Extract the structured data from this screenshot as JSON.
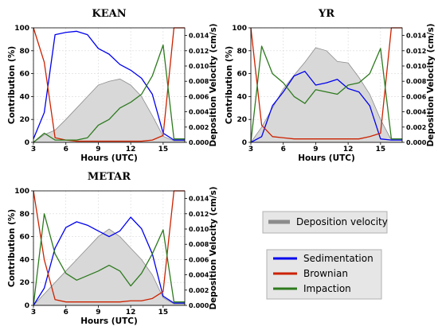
{
  "chart_data": [
    {
      "type": "line",
      "title": "KEAN",
      "xlabel": "Hours (UTC)",
      "ylabel": "Contribution (%)",
      "y2label": "Deposition Velocity (cm/s)",
      "xlim": [
        3,
        17
      ],
      "ylim": [
        0,
        100
      ],
      "y2lim": [
        0,
        0.015
      ],
      "xticks": [
        "3",
        "6",
        "9",
        "12",
        "15"
      ],
      "yticks": [
        "0",
        "20",
        "40",
        "60",
        "80",
        "100"
      ],
      "y2ticks": [
        "0.000",
        "0.002",
        "0.004",
        "0.006",
        "0.008",
        "0.010",
        "0.012",
        "0.014"
      ],
      "x": [
        3,
        4,
        5,
        6,
        7,
        8,
        9,
        10,
        11,
        12,
        13,
        14,
        15,
        16,
        17
      ],
      "series": [
        {
          "name": "Sedimentation",
          "color": "#0000ee",
          "values": [
            3,
            26,
            94,
            96,
            97,
            94,
            82,
            77,
            68,
            63,
            56,
            42,
            8,
            2,
            2
          ]
        },
        {
          "name": "Brownian",
          "color": "#cc2200",
          "values": [
            100,
            70,
            4,
            2,
            1,
            1,
            1,
            1,
            1,
            1,
            1,
            2,
            6,
            100,
            100
          ]
        },
        {
          "name": "Impaction",
          "color": "#2d7a1e",
          "values": [
            0,
            8,
            2,
            2,
            2,
            4,
            15,
            20,
            30,
            35,
            42,
            58,
            85,
            3,
            3
          ]
        }
      ],
      "deposition_velocity": [
        0.0,
        0.001,
        0.0016,
        0.003,
        0.0045,
        0.006,
        0.0075,
        0.008,
        0.0083,
        0.0075,
        0.006,
        0.0035,
        0.0008,
        0.0002,
        0.0002
      ]
    },
    {
      "type": "line",
      "title": "YR",
      "xlabel": "Hours (UTC)",
      "ylabel": "Contribution (%)",
      "y2label": "Deposition Velocity (cm/s)",
      "xlim": [
        3,
        17
      ],
      "ylim": [
        0,
        100
      ],
      "y2lim": [
        0,
        0.015
      ],
      "xticks": [
        "3",
        "6",
        "9",
        "12",
        "15"
      ],
      "yticks": [
        "0",
        "20",
        "40",
        "60",
        "80",
        "100"
      ],
      "y2ticks": [
        "0.000",
        "0.002",
        "0.004",
        "0.006",
        "0.008",
        "0.010",
        "0.012",
        "0.014"
      ],
      "x": [
        3,
        4,
        5,
        6,
        7,
        8,
        9,
        10,
        11,
        12,
        13,
        14,
        15,
        16,
        17
      ],
      "series": [
        {
          "name": "Sedimentation",
          "color": "#0000ee",
          "values": [
            0,
            5,
            32,
            44,
            58,
            62,
            50,
            52,
            55,
            47,
            44,
            32,
            3,
            2,
            2
          ]
        },
        {
          "name": "Brownian",
          "color": "#cc2200",
          "values": [
            100,
            15,
            5,
            4,
            3,
            3,
            3,
            3,
            3,
            3,
            3,
            5,
            8,
            100,
            100
          ]
        },
        {
          "name": "Impaction",
          "color": "#2d7a1e",
          "values": [
            0,
            84,
            60,
            52,
            40,
            34,
            46,
            44,
            42,
            50,
            52,
            60,
            82,
            3,
            3
          ]
        }
      ],
      "deposition_velocity": [
        0.0,
        0.002,
        0.0045,
        0.007,
        0.0088,
        0.0105,
        0.0124,
        0.012,
        0.0106,
        0.0104,
        0.0085,
        0.0063,
        0.003,
        0.0003,
        0.0003
      ]
    },
    {
      "type": "line",
      "title": "METAR",
      "xlabel": "Hours (UTC)",
      "ylabel": "Contribution (%)",
      "y2label": "Deposition Velocity (cm/s)",
      "xlim": [
        3,
        17
      ],
      "ylim": [
        0,
        100
      ],
      "y2lim": [
        0,
        0.015
      ],
      "xticks": [
        "3",
        "6",
        "9",
        "12",
        "15"
      ],
      "yticks": [
        "0",
        "20",
        "40",
        "60",
        "80",
        "100"
      ],
      "y2ticks": [
        "0.000",
        "0.002",
        "0.004",
        "0.006",
        "0.008",
        "0.010",
        "0.012",
        "0.014"
      ],
      "x": [
        3,
        4,
        5,
        6,
        7,
        8,
        9,
        10,
        11,
        12,
        13,
        14,
        15,
        16,
        17
      ],
      "series": [
        {
          "name": "Sedimentation",
          "color": "#0000ee",
          "values": [
            0,
            15,
            50,
            68,
            73,
            70,
            65,
            60,
            65,
            77,
            67,
            45,
            8,
            2,
            2
          ]
        },
        {
          "name": "Brownian",
          "color": "#cc2200",
          "values": [
            100,
            40,
            5,
            3,
            3,
            3,
            3,
            3,
            3,
            4,
            4,
            6,
            12,
            100,
            100
          ]
        },
        {
          "name": "Impaction",
          "color": "#2d7a1e",
          "values": [
            0,
            80,
            45,
            28,
            22,
            26,
            30,
            35,
            30,
            17,
            28,
            45,
            66,
            3,
            3
          ]
        }
      ],
      "deposition_velocity": [
        0.0,
        0.0015,
        0.003,
        0.0045,
        0.006,
        0.0075,
        0.009,
        0.01,
        0.009,
        0.0075,
        0.006,
        0.004,
        0.001,
        0.0002,
        0.0002
      ]
    }
  ],
  "legends": {
    "deposition": {
      "label": "Deposition velocity",
      "color": "#8c8c8c",
      "fill": "#d8d8d8"
    },
    "mechanisms": [
      {
        "label": "Sedimentation",
        "color": "#0000ee"
      },
      {
        "label": "Brownian",
        "color": "#cc2200"
      },
      {
        "label": "Impaction",
        "color": "#2d7a1e"
      }
    ]
  }
}
